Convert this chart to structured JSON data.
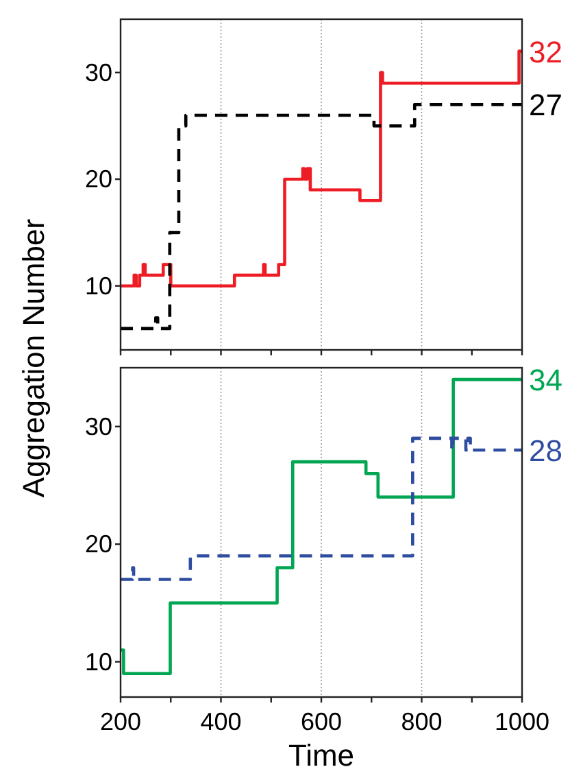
{
  "chart_data": [
    {
      "type": "step",
      "ylabel": "Aggregation Number",
      "xlim": [
        200,
        1000
      ],
      "ylim": [
        4,
        35
      ],
      "xticks": [
        200,
        {
          "value": 300,
          "label": null
        },
        400,
        {
          "value": 500,
          "label": null
        },
        600,
        {
          "value": 700,
          "label": null
        },
        800,
        {
          "value": 900,
          "label": null
        },
        1000
      ],
      "yticks": [
        10,
        20,
        30
      ],
      "tick_labels": "y",
      "grid": "x",
      "series": [
        {
          "color": "#ee1c24",
          "line_style": "solid",
          "x": [
            200,
            227,
            231,
            238,
            245,
            249,
            285,
            300,
            427,
            485,
            488,
            515,
            527,
            563,
            566,
            572,
            578,
            677,
            718,
            722,
            994,
            1000
          ],
          "values": [
            10,
            11,
            10,
            11,
            12,
            11,
            12,
            10,
            11,
            12,
            11,
            12,
            20,
            21,
            20,
            21,
            19,
            18,
            30,
            29,
            32,
            32
          ]
        },
        {
          "color": "#000000",
          "line_style": "dashed",
          "x": [
            200,
            270,
            274,
            298,
            316,
            330,
            705,
            786,
            1000
          ],
          "values": [
            6,
            7,
            6,
            15,
            25,
            26,
            25,
            27,
            27
          ]
        }
      ],
      "annotations": [
        "32",
        "27"
      ]
    },
    {
      "type": "step",
      "xlabel": "Time",
      "xlim": [
        200,
        1000
      ],
      "ylim": [
        7,
        35
      ],
      "xticks": [
        200,
        {
          "value": 300,
          "label": null
        },
        400,
        {
          "value": 500,
          "label": null
        },
        600,
        {
          "value": 700,
          "label": null
        },
        800,
        {
          "value": 900,
          "label": null
        },
        1000
      ],
      "yticks": [
        10,
        20,
        30
      ],
      "grid": "x",
      "series": [
        {
          "color": "#00a651",
          "line_style": "solid",
          "x": [
            200,
            206,
            299,
            512,
            543,
            689,
            713,
            863,
            1000
          ],
          "values": [
            11,
            9,
            15,
            18,
            27,
            26,
            24,
            34,
            34
          ]
        },
        {
          "color": "#2e4da0",
          "line_style": "dashed",
          "x": [
            200,
            224,
            226,
            339,
            782,
            860,
            862,
            888,
            892,
            897,
            1000
          ],
          "values": [
            17,
            18,
            17,
            19,
            29,
            28,
            29,
            28,
            29,
            28,
            28
          ]
        }
      ],
      "annotations": [
        "34",
        "28"
      ]
    }
  ]
}
